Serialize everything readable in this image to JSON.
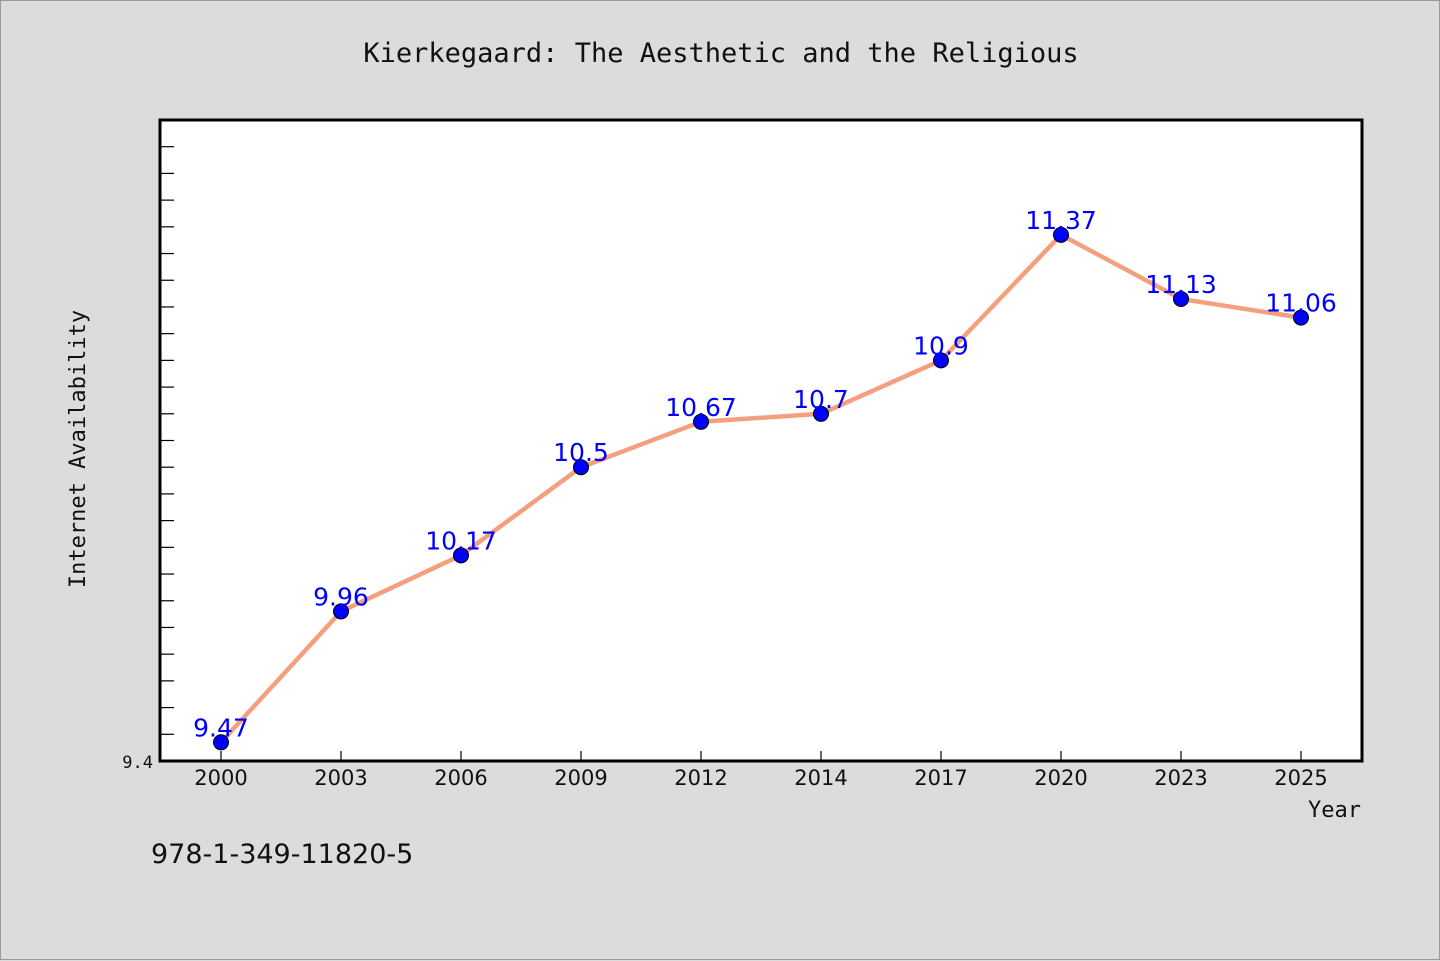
{
  "chart_data": {
    "type": "line",
    "title": "Kierkegaard: The Aesthetic and the Religious",
    "xlabel": "Year",
    "ylabel": "Internet Availability",
    "categories": [
      "2000",
      "2003",
      "2006",
      "2009",
      "2012",
      "2014",
      "2017",
      "2020",
      "2023",
      "2025"
    ],
    "series": [
      {
        "values": [
          9.47,
          9.96,
          10.17,
          10.5,
          10.67,
          10.7,
          10.9,
          11.37,
          11.13,
          11.06
        ],
        "labels": [
          "9.47",
          "9.96",
          "10.17",
          "10.5",
          "10.67",
          "10.7",
          "10.9",
          "11.37",
          "11.13",
          "11.06"
        ],
        "line_color": "#f4a07e",
        "marker_color": "#0000ff"
      }
    ],
    "ylim": [
      9.4,
      11.8
    ],
    "y_tick_labels": [
      "9.4"
    ],
    "grid": false,
    "legend": "none"
  },
  "footer": {
    "isbn": "978-1-349-11820-5"
  },
  "colors": {
    "background": "#dcdcdc",
    "plot_background": "#ffffff",
    "data_label": "#0000ff"
  }
}
